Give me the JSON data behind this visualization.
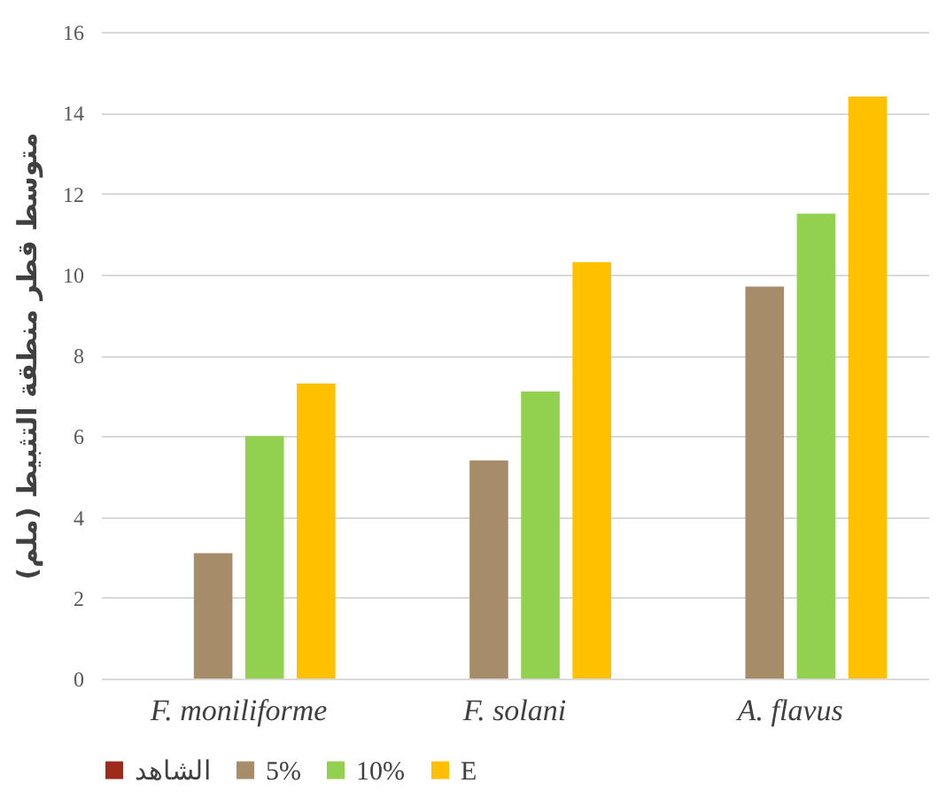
{
  "chart_data": {
    "type": "bar",
    "ylabel": "متوسط قطر منطقة التثبيط (ملم)",
    "categories": [
      "F. moniliforme",
      "F. solani",
      "A. flavus"
    ],
    "series": [
      {
        "name": "الشاهد",
        "color": "#9e2a1c",
        "values": [
          0,
          0,
          0
        ]
      },
      {
        "name": "5%",
        "color": "#a68c69",
        "values": [
          3.1,
          5.4,
          9.7
        ]
      },
      {
        "name": "10%",
        "color": "#92d050",
        "values": [
          6.0,
          7.1,
          11.5
        ]
      },
      {
        "name": "E",
        "color": "#ffc000",
        "values": [
          7.3,
          10.3,
          14.4
        ]
      }
    ],
    "ylim": [
      0,
      16
    ],
    "yticks": [
      0,
      2,
      4,
      6,
      8,
      10,
      12,
      14,
      16
    ],
    "grid": "y",
    "legend": "bottom"
  }
}
